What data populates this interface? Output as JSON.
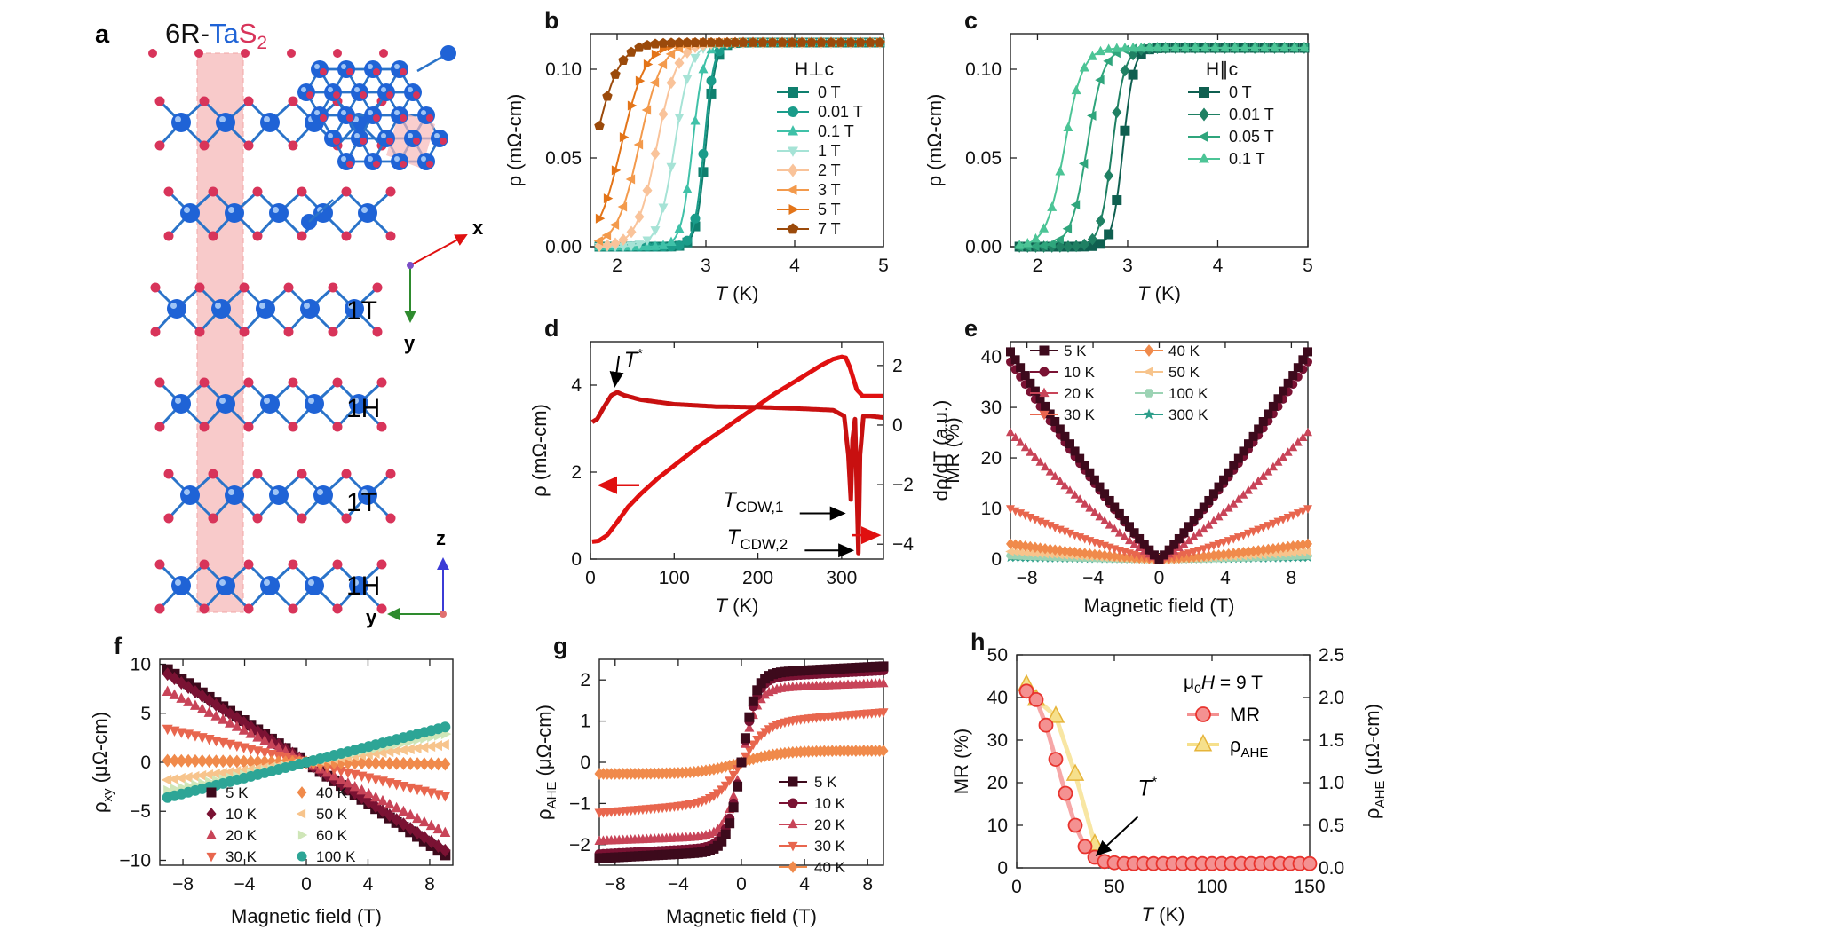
{
  "colors": {
    "ta": "#1f63d6",
    "s": "#d8345a",
    "shade": "#f6b9b9",
    "axis_red": "#e01010",
    "axis_green": "#2e8b2e",
    "axis_blue": "#3b3bd6"
  },
  "panel_a": {
    "label": "a",
    "title_prefix": "6R-",
    "title_ta": "Ta",
    "title_s": "S",
    "title_sub": "2",
    "layers": [
      "1T",
      "1H",
      "1T",
      "1H"
    ],
    "axis_x": "x",
    "axis_y": "y",
    "axis_z": "z",
    "axis_y2": "y"
  },
  "chart_data": [
    {
      "id": "b",
      "type": "line",
      "label": "b",
      "xlabel": "T (K)",
      "ylabel": "ρ (mΩ-cm)",
      "xlim": [
        1.7,
        5
      ],
      "ylim": [
        0,
        0.12
      ],
      "xticks": [
        2,
        3,
        4,
        5
      ],
      "yticks": [
        0.0,
        0.05,
        0.1
      ],
      "ytick_labels": [
        "0.00",
        "0.05",
        "0.10"
      ],
      "legend_title": "H⊥c",
      "rho_max": 0.115,
      "series": [
        {
          "name": "0 T",
          "marker": "square",
          "color": "#0f7f6e",
          "tc": 3.0,
          "width": 0.12
        },
        {
          "name": "0.01 T",
          "marker": "circle",
          "color": "#1a9c8a",
          "tc": 2.98,
          "width": 0.12
        },
        {
          "name": "0.1 T",
          "marker": "triangle",
          "color": "#3fc1a8",
          "tc": 2.85,
          "width": 0.14
        },
        {
          "name": "1 T",
          "marker": "triangle-down",
          "color": "#a6e3d6",
          "tc": 2.65,
          "width": 0.2
        },
        {
          "name": "2 T",
          "marker": "diamond",
          "color": "#f9c39a",
          "tc": 2.45,
          "width": 0.25
        },
        {
          "name": "3 T",
          "marker": "triangle-left",
          "color": "#f39a4c",
          "tc": 2.25,
          "width": 0.28
        },
        {
          "name": "5 T",
          "marker": "triangle-right",
          "color": "#e37418",
          "tc": 2.05,
          "width": 0.3
        },
        {
          "name": "7 T",
          "marker": "pentagon",
          "color": "#9b4a0b",
          "tc": 1.75,
          "width": 0.3
        }
      ]
    },
    {
      "id": "c",
      "type": "line",
      "label": "c",
      "xlabel": "T (K)",
      "ylabel": "ρ (mΩ-cm)",
      "xlim": [
        1.7,
        5
      ],
      "ylim": [
        0,
        0.12
      ],
      "xticks": [
        2,
        3,
        4,
        5
      ],
      "yticks": [
        0.0,
        0.05,
        0.1
      ],
      "ytick_labels": [
        "0.00",
        "0.05",
        "0.10"
      ],
      "legend_title": "H∥c",
      "rho_max": 0.112,
      "series": [
        {
          "name": "0 T",
          "marker": "square",
          "color": "#0f5f50",
          "tc": 2.95,
          "width": 0.13
        },
        {
          "name": "0.01 T",
          "marker": "diamond",
          "color": "#1f8063",
          "tc": 2.83,
          "width": 0.15
        },
        {
          "name": "0.05 T",
          "marker": "triangle-left",
          "color": "#2fa57c",
          "tc": 2.55,
          "width": 0.2
        },
        {
          "name": "0.1 T",
          "marker": "triangle",
          "color": "#4cc496",
          "tc": 2.3,
          "width": 0.22
        }
      ]
    },
    {
      "id": "d",
      "type": "line",
      "label": "d",
      "xlabel": "T (K)",
      "ylabel": "ρ (mΩ-cm)",
      "y2label": "dρ/dT (a.u.)",
      "xlim": [
        0,
        350
      ],
      "ylim": [
        0,
        5
      ],
      "y2lim": [
        -4.5,
        2.8
      ],
      "xticks": [
        0,
        100,
        200,
        300
      ],
      "yticks": [
        0,
        2,
        4
      ],
      "y2ticks": [
        -4,
        -2,
        0,
        2
      ],
      "y2tick_labels": [
        "−4",
        "−2",
        "0",
        "2"
      ],
      "series": [
        {
          "name": "ρ",
          "axis": "left",
          "color": "#e01010",
          "points": [
            [
              2,
              0.4
            ],
            [
              10,
              0.42
            ],
            [
              20,
              0.55
            ],
            [
              30,
              0.8
            ],
            [
              45,
              1.2
            ],
            [
              60,
              1.5
            ],
            [
              80,
              1.85
            ],
            [
              100,
              2.15
            ],
            [
              130,
              2.6
            ],
            [
              160,
              3.0
            ],
            [
              190,
              3.4
            ],
            [
              220,
              3.8
            ],
            [
              250,
              4.15
            ],
            [
              275,
              4.45
            ],
            [
              290,
              4.6
            ],
            [
              300,
              4.65
            ],
            [
              305,
              4.63
            ],
            [
              310,
              4.4
            ],
            [
              318,
              3.9
            ],
            [
              325,
              3.75
            ],
            [
              340,
              3.75
            ],
            [
              350,
              3.75
            ]
          ]
        },
        {
          "name": "dρ/dT",
          "axis": "right",
          "color": "#c81010",
          "points": [
            [
              2,
              0.1
            ],
            [
              8,
              0.2
            ],
            [
              15,
              0.55
            ],
            [
              25,
              1.0
            ],
            [
              32,
              1.1
            ],
            [
              40,
              1.0
            ],
            [
              60,
              0.85
            ],
            [
              100,
              0.7
            ],
            [
              150,
              0.62
            ],
            [
              200,
              0.6
            ],
            [
              250,
              0.55
            ],
            [
              290,
              0.5
            ],
            [
              303,
              0.3
            ],
            [
              308,
              -1.0
            ],
            [
              311,
              -2.5
            ],
            [
              313,
              -0.5
            ],
            [
              316,
              0.2
            ],
            [
              318,
              -2.0
            ],
            [
              320,
              -4.3
            ],
            [
              322,
              -1.0
            ],
            [
              326,
              0.3
            ],
            [
              335,
              0.3
            ],
            [
              350,
              0.25
            ]
          ]
        }
      ],
      "annotations": {
        "tstar": "T",
        "tstar_sup": "*",
        "tcdw1": "T",
        "tcdw1_sub": "CDW,1",
        "tcdw2": "T",
        "tcdw2_sub": "CDW,2"
      }
    },
    {
      "id": "e",
      "type": "line",
      "label": "e",
      "xlabel": "Magnetic field (T)",
      "ylabel": "MR (%)",
      "xlim": [
        -9,
        9
      ],
      "ylim": [
        0,
        43
      ],
      "xticks": [
        -8,
        -4,
        0,
        4,
        8
      ],
      "xtick_labels": [
        "−8",
        "−4",
        "0",
        "4",
        "8"
      ],
      "yticks": [
        0,
        10,
        20,
        30,
        40
      ],
      "series": [
        {
          "name": "5 K",
          "marker": "square",
          "color": "#3d0a1c",
          "mr9": 41,
          "pow": 1.15
        },
        {
          "name": "10 K",
          "marker": "circle",
          "color": "#7a1233",
          "mr9": 39,
          "pow": 1.15
        },
        {
          "name": "20 K",
          "marker": "triangle",
          "color": "#c84458",
          "mr9": 25,
          "pow": 1.2
        },
        {
          "name": "30 K",
          "marker": "triangle-down",
          "color": "#e8664e",
          "mr9": 10,
          "pow": 1.3
        },
        {
          "name": "40 K",
          "marker": "diamond",
          "color": "#f08a4b",
          "mr9": 3,
          "pow": 1.4
        },
        {
          "name": "50 K",
          "marker": "triangle-left",
          "color": "#f7c48c",
          "mr9": 1.5,
          "pow": 1.5
        },
        {
          "name": "100 K",
          "marker": "hexagon",
          "color": "#9cd3b4",
          "mr9": 0.7,
          "pow": 1.6
        },
        {
          "name": "300 K",
          "marker": "star",
          "color": "#2d9e8a",
          "mr9": 0.3,
          "pow": 1.6
        }
      ]
    },
    {
      "id": "f",
      "type": "line",
      "label": "f",
      "xlabel": "Magnetic field (T)",
      "ylabel": "ρ",
      "ylabel_sub": "xy",
      "ylabel_unit": " (μΩ-cm)",
      "xlim": [
        -9.5,
        9.5
      ],
      "ylim": [
        -10.5,
        10.5
      ],
      "xticks": [
        -8,
        -4,
        0,
        4,
        8
      ],
      "xtick_labels": [
        "−8",
        "−4",
        "0",
        "4",
        "8"
      ],
      "yticks": [
        -10,
        -5,
        0,
        5,
        10
      ],
      "ytick_labels": [
        "−10",
        "−5",
        "0",
        "5",
        "10"
      ],
      "series": [
        {
          "name": "5 K",
          "marker": "square",
          "color": "#3d0a1c",
          "slope": -1.05,
          "curv": 0
        },
        {
          "name": "10 K",
          "marker": "diamond",
          "color": "#7a1233",
          "slope": -1.0,
          "curv": 0
        },
        {
          "name": "20 K",
          "marker": "triangle",
          "color": "#c84458",
          "slope": -0.8,
          "curv": 0
        },
        {
          "name": "30 K",
          "marker": "triangle-down",
          "color": "#e8664e",
          "slope": -0.38,
          "curv": 0
        },
        {
          "name": "40 K",
          "marker": "diamond",
          "color": "#f08a4b",
          "slope": -0.02,
          "curv": 0
        },
        {
          "name": "50 K",
          "marker": "triangle-left",
          "color": "#f7c48c",
          "slope": 0.2,
          "curv": 0
        },
        {
          "name": "60 K",
          "marker": "triangle-right",
          "color": "#cfe6b8",
          "slope": 0.32,
          "curv": 0
        },
        {
          "name": "100 K",
          "marker": "circle",
          "color": "#2da596",
          "slope": 0.4,
          "curv": 0
        }
      ]
    },
    {
      "id": "g",
      "type": "line",
      "label": "g",
      "xlabel": "Magnetic field (T)",
      "ylabel": "ρ",
      "ylabel_sub": "AHE",
      "ylabel_unit": " (μΩ-cm)",
      "xlim": [
        -9,
        9
      ],
      "ylim": [
        -2.5,
        2.5
      ],
      "xticks": [
        -8,
        -4,
        0,
        4,
        8
      ],
      "xtick_labels": [
        "−8",
        "−4",
        "0",
        "4",
        "8"
      ],
      "yticks": [
        -2,
        -1,
        0,
        1,
        2
      ],
      "ytick_labels": [
        "−2",
        "−1",
        "0",
        "1",
        "2"
      ],
      "series": [
        {
          "name": "5 K",
          "marker": "square",
          "color": "#3d0a1c",
          "sat": 2.15,
          "h0": 0.9,
          "lin": 0.02
        },
        {
          "name": "10 K",
          "marker": "circle",
          "color": "#7a1233",
          "sat": 2.05,
          "h0": 0.95,
          "lin": 0.02
        },
        {
          "name": "20 K",
          "marker": "triangle",
          "color": "#c84458",
          "sat": 1.78,
          "h0": 1.0,
          "lin": 0.015
        },
        {
          "name": "30 K",
          "marker": "triangle-down",
          "color": "#e8664e",
          "sat": 0.95,
          "h0": 1.6,
          "lin": 0.03
        },
        {
          "name": "40 K",
          "marker": "diamond",
          "color": "#f08a4b",
          "sat": 0.28,
          "h0": 2.5,
          "lin": 0.0
        }
      ]
    },
    {
      "id": "h",
      "type": "line",
      "label": "h",
      "xlabel": "T (K)",
      "ylabel": "MR (%)",
      "y2label": "ρ",
      "y2label_sub": "AHE",
      "y2label_unit": " (μΩ-cm)",
      "xlim": [
        0,
        150
      ],
      "ylim": [
        0,
        50
      ],
      "y2lim": [
        0,
        2.5
      ],
      "xticks": [
        0,
        50,
        100,
        150
      ],
      "yticks": [
        0,
        10,
        20,
        30,
        40,
        50
      ],
      "y2ticks": [
        0.0,
        0.5,
        1.0,
        1.5,
        2.0,
        2.5
      ],
      "y2tick_labels": [
        "0.0",
        "0.5",
        "1.0",
        "1.5",
        "2.0",
        "2.5"
      ],
      "legend_title": "μ",
      "legend_title_sub": "0",
      "legend_title_rest": " = 9 T",
      "tstar": "T",
      "tstar_sup": "*",
      "series": [
        {
          "name": "MR",
          "axis": "left",
          "marker": "circle",
          "color": "#e8342e",
          "fill": "#f49191",
          "points": [
            [
              5,
              41.5
            ],
            [
              10,
              39.5
            ],
            [
              15,
              33.5
            ],
            [
              20,
              25.5
            ],
            [
              25,
              17.5
            ],
            [
              30,
              10
            ],
            [
              35,
              5
            ],
            [
              40,
              2.5
            ],
            [
              45,
              1.5
            ],
            [
              50,
              1.2
            ],
            [
              55,
              1.0
            ],
            [
              60,
              1.0
            ],
            [
              65,
              1.0
            ],
            [
              70,
              1.0
            ],
            [
              75,
              1.0
            ],
            [
              80,
              1.0
            ],
            [
              85,
              1.0
            ],
            [
              90,
              1.0
            ],
            [
              95,
              1.0
            ],
            [
              100,
              1.0
            ],
            [
              105,
              1.0
            ],
            [
              110,
              1.0
            ],
            [
              115,
              1.0
            ],
            [
              120,
              1.0
            ],
            [
              125,
              1.0
            ],
            [
              130,
              1.0
            ],
            [
              135,
              1.0
            ],
            [
              140,
              1.0
            ],
            [
              145,
              1.0
            ],
            [
              150,
              1.0
            ]
          ]
        },
        {
          "name": "ρ",
          "name_sub": "AHE",
          "axis": "right",
          "marker": "triangle",
          "color": "#e6b43a",
          "fill": "#f6e08c",
          "points": [
            [
              5,
              2.15
            ],
            [
              10,
              1.98
            ],
            [
              20,
              1.78
            ],
            [
              30,
              1.1
            ],
            [
              40,
              0.28
            ]
          ]
        }
      ]
    }
  ]
}
